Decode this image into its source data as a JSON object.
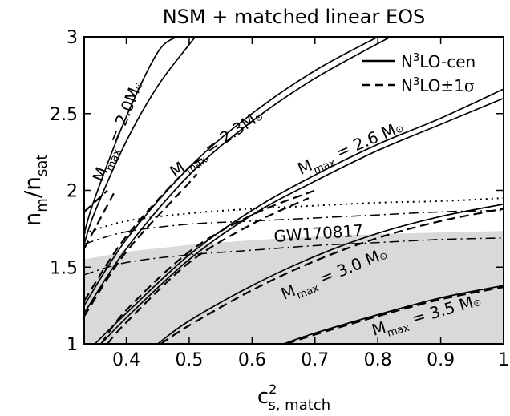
{
  "chart_data": {
    "type": "line",
    "title": "NSM + matched linear EOS",
    "xlabel_base": "c",
    "xlabel_sup": "2",
    "xlabel_sub": "s, match",
    "ylabel_base": "n",
    "ylabel_sub1": "m",
    "ylabel_mid": "/n",
    "ylabel_sub2": "sat",
    "xlim": [
      0.333,
      1.0
    ],
    "ylim": [
      1.0,
      3.0
    ],
    "xticks": [
      0.4,
      0.5,
      0.6,
      0.7,
      0.8,
      0.9,
      1
    ],
    "xtick_labels": [
      "0.4",
      "0.5",
      "0.6",
      "0.7",
      "0.8",
      "0.9",
      "1"
    ],
    "yticks": [
      1,
      1.5,
      2,
      2.5,
      3
    ],
    "ytick_labels": [
      "1",
      "1.5",
      "2",
      "2.5",
      "3"
    ],
    "legend_position": "top-right",
    "legend": [
      {
        "pre": "N",
        "sup": "3",
        "post": "LO-cen",
        "style": "solid"
      },
      {
        "pre": "N",
        "sup": "3",
        "post": "LO±1σ",
        "style": "dashed"
      }
    ],
    "gw_band": {
      "label": "GW170817",
      "upper_x": [
        0.333,
        0.4,
        0.5,
        0.6,
        0.7,
        0.8,
        0.9,
        1.0
      ],
      "upper_y": [
        1.55,
        1.6,
        1.645,
        1.675,
        1.7,
        1.715,
        1.725,
        1.735
      ],
      "fill": "#d9d9d9"
    },
    "curve_labels": [
      {
        "key": "m20",
        "pre": "M",
        "sub": "max",
        "post": " = 2.0M",
        "sun": "⊙"
      },
      {
        "key": "m23",
        "pre": "M",
        "sub": "max",
        "post": " = 2.3M",
        "sun": "⊙"
      },
      {
        "key": "m26",
        "pre": "M",
        "sub": "max",
        "post": " = 2.6 M",
        "sun": "⊙"
      },
      {
        "key": "m30",
        "pre": "M",
        "sub": "max",
        "post": " = 3.0 M",
        "sun": "⊙"
      },
      {
        "key": "m35",
        "pre": "M",
        "sub": "max",
        "post": " = 3.5 M",
        "sun": "⊙"
      }
    ],
    "series": [
      {
        "label_key": "m20",
        "style": "solid",
        "x": [
          0.333,
          0.35,
          0.4,
          0.45,
          0.48
        ],
        "y": [
          1.72,
          1.95,
          2.48,
          2.9,
          3.0
        ]
      },
      {
        "label_key": "m20",
        "style": "solid",
        "x": [
          0.333,
          0.35,
          0.4,
          0.45,
          0.5,
          0.51
        ],
        "y": [
          1.65,
          1.86,
          2.32,
          2.68,
          2.95,
          3.0
        ]
      },
      {
        "label_key": "m20",
        "style": "dashed",
        "x": [
          0.333,
          0.37
        ],
        "y": [
          1.86,
          2.0
        ]
      },
      {
        "label_key": "m20",
        "style": "dashed",
        "x": [
          0.333,
          0.38
        ],
        "y": [
          1.62,
          1.98
        ]
      },
      {
        "label_key": "m23",
        "style": "solid",
        "x": [
          0.333,
          0.4,
          0.5,
          0.6,
          0.7,
          0.8
        ],
        "y": [
          1.25,
          1.68,
          2.15,
          2.5,
          2.78,
          3.0
        ]
      },
      {
        "label_key": "m23",
        "style": "solid",
        "x": [
          0.333,
          0.4,
          0.5,
          0.6,
          0.7,
          0.82
        ],
        "y": [
          1.2,
          1.62,
          2.1,
          2.45,
          2.73,
          3.0
        ]
      },
      {
        "label_key": "m23",
        "style": "dashed",
        "x": [
          0.333,
          0.4,
          0.5,
          0.53
        ],
        "y": [
          1.28,
          1.7,
          2.15,
          2.2
        ]
      },
      {
        "label_key": "m23",
        "style": "dashed",
        "x": [
          0.333,
          0.4,
          0.5,
          0.51
        ],
        "y": [
          1.18,
          1.6,
          2.05,
          2.1
        ]
      },
      {
        "label_key": "m26",
        "style": "solid",
        "x": [
          0.35,
          0.4,
          0.5,
          0.6,
          0.7,
          0.8,
          0.9,
          1.0
        ],
        "y": [
          1.0,
          1.2,
          1.58,
          1.87,
          2.1,
          2.3,
          2.47,
          2.66
        ]
      },
      {
        "label_key": "m26",
        "style": "solid",
        "x": [
          0.36,
          0.4,
          0.5,
          0.6,
          0.7,
          0.8,
          0.9,
          1.0
        ],
        "y": [
          1.0,
          1.17,
          1.55,
          1.84,
          2.06,
          2.26,
          2.43,
          2.6
        ]
      },
      {
        "label_key": "m26",
        "style": "dashed",
        "x": [
          0.36,
          0.4,
          0.5,
          0.6,
          0.7
        ],
        "y": [
          1.0,
          1.22,
          1.6,
          1.84,
          2.0
        ]
      },
      {
        "label_key": "m26",
        "style": "dashed",
        "x": [
          0.37,
          0.4,
          0.5,
          0.6,
          0.69
        ],
        "y": [
          1.0,
          1.14,
          1.53,
          1.78,
          1.95
        ]
      },
      {
        "label_key": "m30",
        "style": "solid",
        "x": [
          0.45,
          0.5,
          0.6,
          0.7,
          0.8,
          0.9,
          1.0
        ],
        "y": [
          1.0,
          1.15,
          1.38,
          1.57,
          1.72,
          1.83,
          1.91
        ]
      },
      {
        "label_key": "m30",
        "style": "dashed",
        "x": [
          0.455,
          0.5,
          0.6,
          0.7,
          0.8,
          0.9,
          1.0
        ],
        "y": [
          1.0,
          1.12,
          1.35,
          1.54,
          1.69,
          1.8,
          1.88
        ]
      },
      {
        "label_key": "m35",
        "style": "solid",
        "x": [
          0.65,
          0.7,
          0.8,
          0.9,
          1.0
        ],
        "y": [
          1.0,
          1.07,
          1.19,
          1.3,
          1.38
        ]
      },
      {
        "label_key": "m35",
        "style": "dashed",
        "x": [
          0.655,
          0.7,
          0.8,
          0.9,
          1.0
        ],
        "y": [
          1.0,
          1.06,
          1.18,
          1.29,
          1.37
        ]
      },
      {
        "label_key": "gw",
        "style": "dotted",
        "x": [
          0.333,
          0.4,
          0.5,
          0.6,
          0.7,
          0.8,
          0.9,
          1.0
        ],
        "y": [
          1.72,
          1.8,
          1.85,
          1.88,
          1.9,
          1.92,
          1.93,
          1.95
        ]
      },
      {
        "label_key": "gw",
        "style": "dashdot",
        "x": [
          0.333,
          0.4,
          0.5,
          0.6,
          0.7,
          0.8,
          0.9,
          1.0
        ],
        "y": [
          1.65,
          1.73,
          1.78,
          1.8,
          1.82,
          1.84,
          1.86,
          1.87
        ]
      },
      {
        "label_key": "gw",
        "style": "dashdot",
        "x": [
          0.333,
          0.4,
          0.5,
          0.6,
          0.7,
          0.8,
          0.9,
          1.0
        ],
        "y": [
          1.45,
          1.53,
          1.58,
          1.61,
          1.64,
          1.66,
          1.68,
          1.69
        ]
      }
    ]
  }
}
